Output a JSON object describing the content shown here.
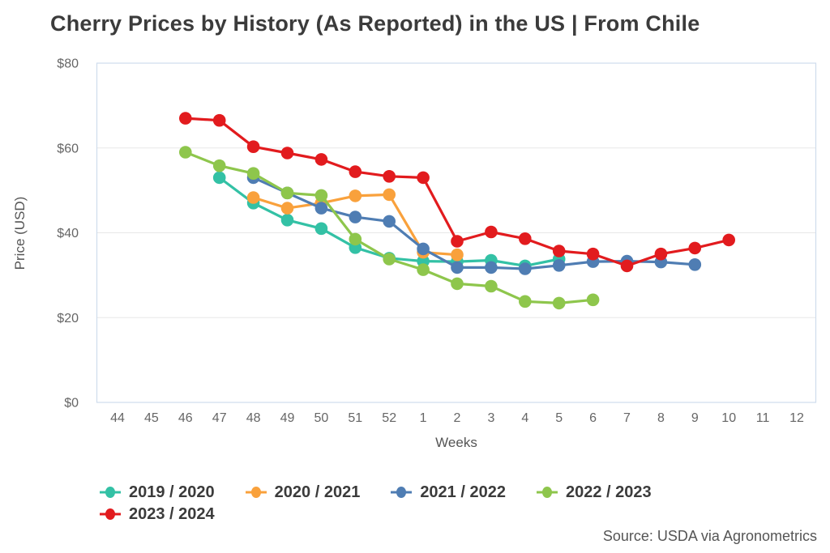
{
  "source_note": "Source: USDA via Agronometrics",
  "chart_data": {
    "type": "line",
    "title": "Cherry Prices by History (As Reported) in the US | From Chile",
    "xlabel": "Weeks",
    "ylabel": "Price (USD)",
    "categories": [
      "44",
      "45",
      "46",
      "47",
      "48",
      "49",
      "50",
      "51",
      "52",
      "1",
      "2",
      "3",
      "4",
      "5",
      "6",
      "7",
      "8",
      "9",
      "10",
      "11",
      "12"
    ],
    "y_ticks": [
      {
        "value": 0,
        "label": "$0"
      },
      {
        "value": 20,
        "label": "$20"
      },
      {
        "value": 40,
        "label": "$40"
      },
      {
        "value": 60,
        "label": "$60"
      },
      {
        "value": 80,
        "label": "$80"
      }
    ],
    "ylim": [
      0,
      80
    ],
    "grid": "horizontal",
    "grid_color": "#e8e8e8",
    "border_color": "#cfdcec",
    "tick_label_color": "#666666",
    "axis_title_color": "#555555",
    "legend_position": "bottom-left",
    "marker": "circle",
    "series": [
      {
        "name": "2019 / 2020",
        "color": "#33c1a5",
        "values": [
          null,
          null,
          null,
          53,
          47,
          43,
          41,
          36.5,
          34,
          33.3,
          33.2,
          33.5,
          32.2,
          33.8,
          null,
          null,
          null,
          null,
          null,
          null,
          null
        ]
      },
      {
        "name": "2020 / 2021",
        "color": "#f9a13c",
        "values": [
          null,
          null,
          null,
          null,
          48.3,
          45.8,
          47,
          48.7,
          49,
          35.4,
          34.8,
          null,
          null,
          null,
          null,
          null,
          null,
          null,
          null,
          null,
          null
        ]
      },
      {
        "name": "2021 / 2022",
        "color": "#4f7db3",
        "values": [
          null,
          null,
          null,
          null,
          53,
          49.4,
          45.8,
          43.7,
          42.7,
          36.2,
          31.8,
          31.8,
          31.5,
          32.3,
          33.2,
          33.3,
          33.1,
          32.5,
          null,
          null,
          null
        ]
      },
      {
        "name": "2022 / 2023",
        "color": "#8ec64c",
        "values": [
          null,
          null,
          59,
          55.8,
          54,
          49.4,
          48.8,
          38.5,
          33.8,
          31.3,
          28,
          27.4,
          23.8,
          23.4,
          24.2,
          null,
          null,
          null,
          null,
          null,
          null
        ]
      },
      {
        "name": "2023 / 2024",
        "color": "#e21b1e",
        "values": [
          null,
          null,
          67,
          66.5,
          60.3,
          58.8,
          57.3,
          54.4,
          53.3,
          53,
          38,
          40.2,
          38.6,
          35.7,
          35,
          32.2,
          35,
          36.4,
          38.3,
          null,
          null
        ]
      }
    ]
  }
}
